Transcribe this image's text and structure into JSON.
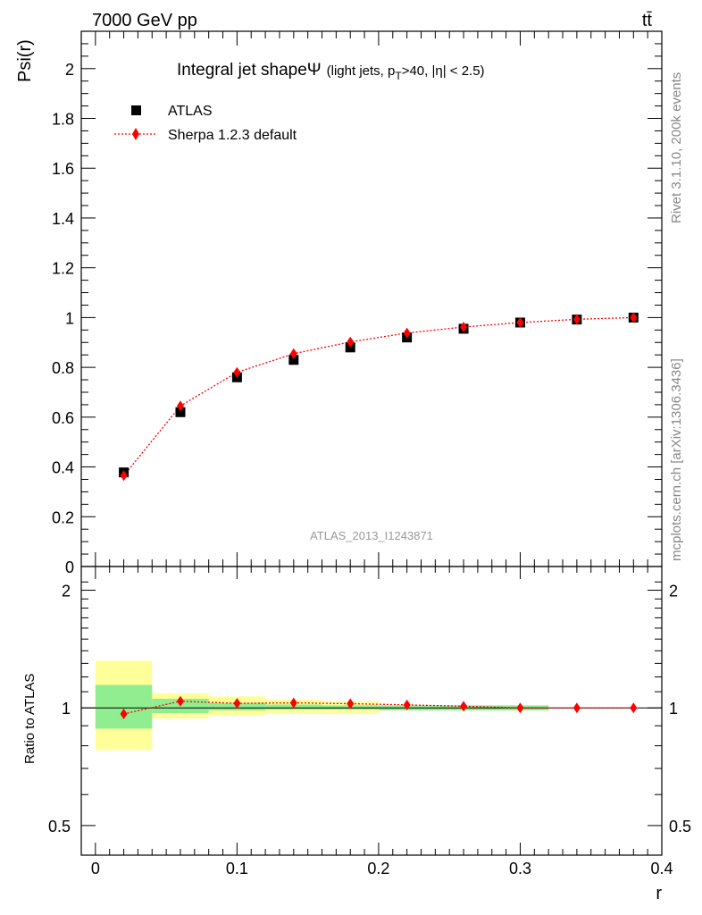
{
  "header": {
    "energy": "7000 GeV pp",
    "process": "tt̄"
  },
  "side_labels": {
    "rivet": "Rivet 3.1.10,  200k events",
    "mcplots": "mcplots.cern.ch [arXiv:1306.3436]"
  },
  "chart_data": [
    {
      "type": "scatter",
      "title": "Integral jet shape",
      "title_symbol": "Ψ",
      "title_cuts_a": "(light jets, p",
      "title_cuts_sub": "T",
      "title_cuts_b": ">40, |η| < 2.5)",
      "ylabel": "Psi(r)",
      "xlabel": "",
      "watermark": "ATLAS_2013_I1243871",
      "xlim": [
        -0.01,
        0.4
      ],
      "ylim": [
        0,
        2.15
      ],
      "x_ticks": [
        0,
        0.1,
        0.2,
        0.3,
        0.4
      ],
      "y_ticks": [
        0,
        0.2,
        0.4,
        0.6,
        0.8,
        1,
        1.2,
        1.4,
        1.6,
        1.8,
        2
      ],
      "y_tick_labels": [
        "0",
        "0.2",
        "0.4",
        "0.6",
        "0.8",
        "1",
        "1.2",
        "1.4",
        "1.6",
        "1.8",
        "2"
      ],
      "x": [
        0.02,
        0.06,
        0.1,
        0.14,
        0.18,
        0.22,
        0.26,
        0.3,
        0.34,
        0.38
      ],
      "series": [
        {
          "name": "ATLAS",
          "marker": "square",
          "color": "#000000",
          "values": [
            0.378,
            0.62,
            0.76,
            0.83,
            0.88,
            0.92,
            0.955,
            0.98,
            0.992,
            1.0
          ]
        },
        {
          "name": "Sherpa 1.2.3 default",
          "marker": "diamond",
          "color": "#ff0000",
          "line": "dotted",
          "values": [
            0.365,
            0.645,
            0.78,
            0.855,
            0.902,
            0.938,
            0.962,
            0.98,
            0.993,
            1.0
          ]
        }
      ],
      "legend_position": "top-left"
    },
    {
      "type": "scatter",
      "ylabel": "Ratio to ATLAS",
      "xlabel": "r",
      "xlim": [
        -0.01,
        0.4
      ],
      "ylim": [
        0.42,
        2.3
      ],
      "y_scale": "log",
      "x_ticks": [
        0,
        0.1,
        0.2,
        0.3,
        0.4
      ],
      "x_tick_labels": [
        "0",
        "0.1",
        "0.2",
        "0.3",
        "0.4"
      ],
      "y_ticks": [
        0.5,
        1,
        2
      ],
      "y_tick_labels": [
        "0.5",
        "1",
        "2"
      ],
      "bin_edges": [
        0,
        0.04,
        0.08,
        0.12,
        0.16,
        0.2,
        0.24,
        0.28,
        0.32
      ],
      "band_inner": {
        "color": "#90ee90",
        "low": [
          0.885,
          0.97,
          0.985,
          0.99,
          0.99,
          0.985,
          0.985,
          0.985
        ],
        "high": [
          1.145,
          1.055,
          1.03,
          1.02,
          1.015,
          1.015,
          1.015,
          1.015
        ]
      },
      "band_outer": {
        "color": "#ffff99",
        "low": [
          0.78,
          0.94,
          0.955,
          0.965,
          0.965,
          0.985,
          0.985,
          0.985
        ],
        "high": [
          1.32,
          1.09,
          1.07,
          1.05,
          1.04,
          1.015,
          1.015,
          1.015
        ]
      },
      "x": [
        0.02,
        0.06,
        0.1,
        0.14,
        0.18,
        0.22,
        0.26,
        0.3,
        0.34,
        0.38
      ],
      "series": [
        {
          "name": "Sherpa 1.2.3 default",
          "marker": "diamond",
          "color": "#ff0000",
          "line": "dotted",
          "values": [
            0.965,
            1.04,
            1.027,
            1.03,
            1.025,
            1.018,
            1.01,
            1.0,
            1.0,
            1.0
          ]
        }
      ]
    }
  ]
}
